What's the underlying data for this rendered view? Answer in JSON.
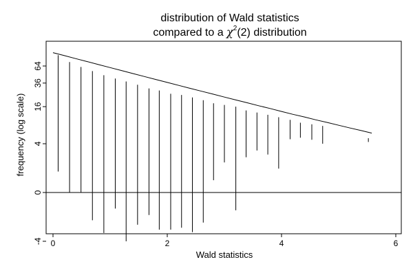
{
  "chart_data": {
    "type": "line",
    "title": "distribution of Wald statistics",
    "subtitle_prefix": "compared to a ",
    "subtitle_symbol": "χ",
    "subtitle_superscript": "2",
    "subtitle_suffix": "(2) distribution",
    "xlabel": "Wald statistics",
    "ylabel": "frequency (log scale)",
    "xlim": [
      -0.1,
      6.1
    ],
    "yscale": "signed-log",
    "xticks": [
      0,
      2,
      4,
      6
    ],
    "xtick_labels": [
      "0",
      "2",
      "4",
      "6"
    ],
    "yticks": [
      -4,
      0,
      4,
      16,
      36,
      64
    ],
    "ytick_labels": [
      "-4",
      "0",
      "4",
      "16",
      "36",
      "64"
    ],
    "grid": false,
    "reference_line_y": 0,
    "series": [
      {
        "type": "spike",
        "x": [
          0.09,
          0.29,
          0.49,
          0.69,
          0.89,
          1.09,
          1.28,
          1.48,
          1.68,
          1.86,
          2.06,
          2.25,
          2.44,
          2.63,
          2.81,
          3.0,
          3.2,
          3.38,
          3.57,
          3.76,
          3.95,
          4.15,
          4.33,
          4.53,
          4.72,
          5.52
        ],
        "top": [
          92,
          73,
          62,
          54,
          47,
          42,
          38,
          34,
          30,
          28,
          25,
          24,
          22,
          20,
          18,
          17,
          16,
          14,
          13,
          12,
          11,
          10,
          9,
          8.5,
          8,
          5
        ],
        "bottom": [
          1,
          0,
          0,
          -1.5,
          -2.8,
          -0.7,
          -4.0,
          -1.9,
          -1.1,
          -2.4,
          -2.4,
          -2.2,
          -2.7,
          -1.7,
          0.5,
          1.7,
          -0.8,
          2.2,
          3.0,
          2.5,
          1.2,
          4.8,
          5.1,
          4.7,
          4.0,
          4.3
        ]
      },
      {
        "type": "curve",
        "x": [
          0.0,
          0.2,
          0.4,
          0.6,
          0.8,
          1.0,
          1.2,
          1.4,
          1.6,
          1.8,
          2.0,
          2.2,
          2.4,
          2.6,
          2.8,
          3.0,
          3.2,
          3.4,
          3.6,
          3.8,
          4.0,
          4.2,
          4.4,
          4.6,
          4.8,
          5.0,
          5.2,
          5.4,
          5.58
        ],
        "y": [
          100,
          90.5,
          81.9,
          74.1,
          67.0,
          60.7,
          54.9,
          49.7,
          44.9,
          40.7,
          36.8,
          33.3,
          30.1,
          27.3,
          24.7,
          22.3,
          20.2,
          18.3,
          16.5,
          15.0,
          13.5,
          12.2,
          11.1,
          10.0,
          9.1,
          8.2,
          7.4,
          6.7,
          6.1
        ]
      }
    ]
  }
}
